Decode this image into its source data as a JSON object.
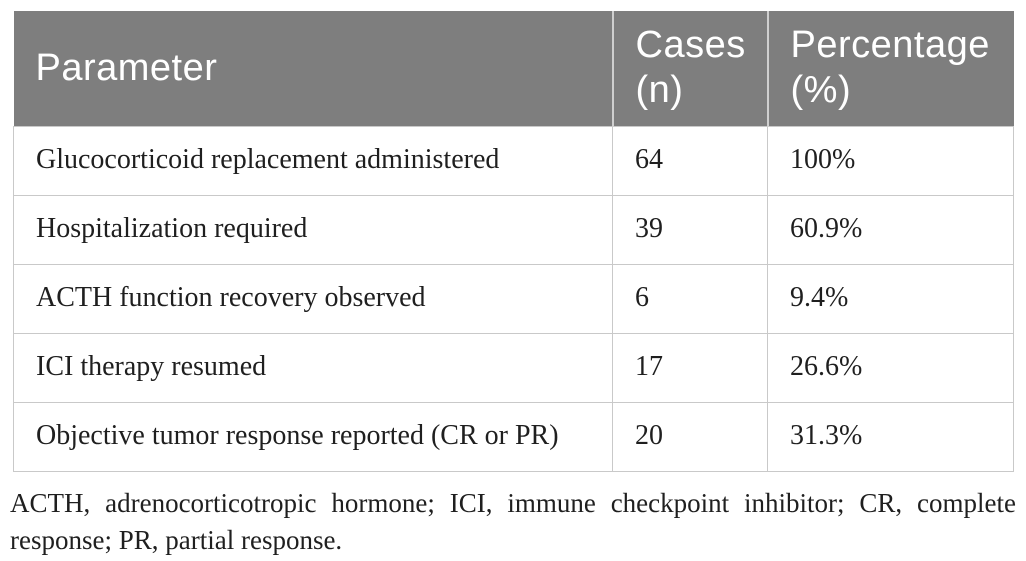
{
  "table": {
    "columns": {
      "parameter": "Parameter",
      "cases": "Cases (n)",
      "percentage": "Percentage (%)"
    },
    "rows": [
      {
        "parameter": "Glucocorticoid replacement administered",
        "cases": "64",
        "percentage": "100%"
      },
      {
        "parameter": "Hospitalization required",
        "cases": "39",
        "percentage": "60.9%"
      },
      {
        "parameter": "ACTH function recovery observed",
        "cases": "6",
        "percentage": "9.4%"
      },
      {
        "parameter": "ICI therapy resumed",
        "cases": "17",
        "percentage": "26.6%"
      },
      {
        "parameter": "Objective tumor response reported (CR or PR)",
        "cases": "20",
        "percentage": "31.3%"
      }
    ]
  },
  "footnote": "ACTH, adrenocorticotropic hormone; ICI, immune checkpoint inhibitor; CR, complete response; PR, partial response.",
  "colors": {
    "header_bg": "#7e7e7e",
    "header_text": "#ffffff",
    "grid_border": "#c9c9c9",
    "body_text": "#1f1f1f"
  }
}
